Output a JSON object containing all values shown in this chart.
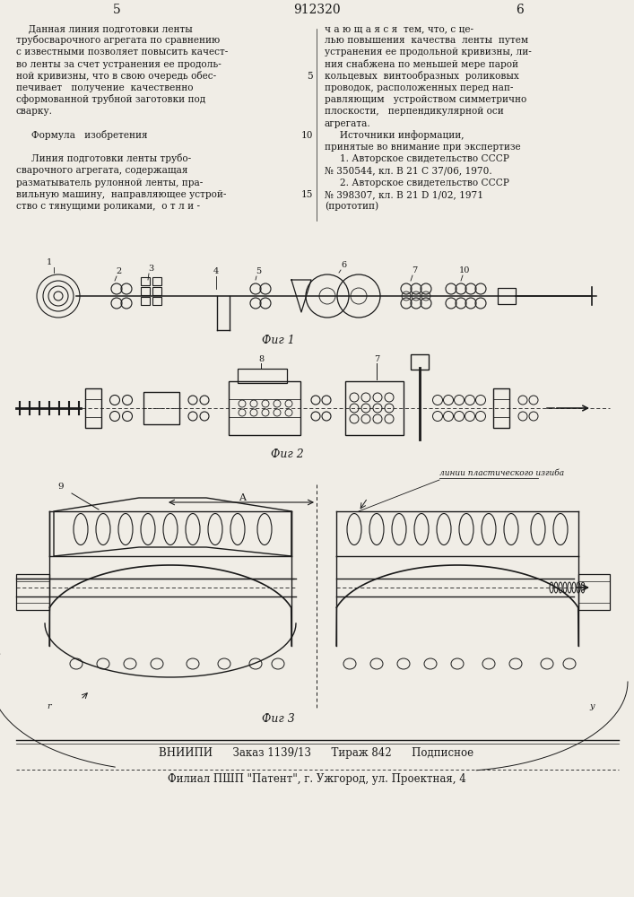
{
  "bg_color": "#f0ede6",
  "text_color": "#1a1a1a",
  "page_number_left": "5",
  "page_number_center": "912320",
  "page_number_right": "6",
  "col1_text": [
    "    Данная линия подготовки ленты",
    "трубосварочного агрегата по сравнению",
    "с известными позволяет повысить качест-",
    "во ленты за счет устранения ее продоль-",
    "ной кривизны, что в свою очередь обес-",
    "печивает   получение  качественно",
    "сформованной трубной заготовки под",
    "сварку.",
    "",
    "     Формула   изобретения",
    "",
    "     Линия подготовки ленты трубо-",
    "сварочного агрегата, содержащая",
    "разматыватель рулонной ленты, пра-",
    "вильную машину,  направляющее устрой-",
    "ство с тянущими роликами,  о т л и -"
  ],
  "col2_text": [
    "ч а ю щ а я с я  тем, что, с це-",
    "лью повышения  качества  ленты  путем",
    "устранения ее продольной кривизны, ли-",
    "ния снабжена по меньшей мере парой",
    "кольцевых  винтообразных  роликовых",
    "проводок, расположенных перед нап-",
    "равляющим   устройством симметрично",
    "плоскости,   перпендикулярной оси",
    "агрегата.",
    "     Источники информации,",
    "принятые во внимание при экспертизе",
    "     1. Авторское свидетельство СССР",
    "№ 350544, кл. В 21 С 37/06, 1970.",
    "     2. Авторское свидетельство СССР",
    "№ 398307, кл. В 21 D 1/02, 1971",
    "(прототип)"
  ],
  "fig1_caption": "Фиг 1",
  "fig2_caption": "Фиг 2",
  "fig3_caption": "Фиг 3",
  "bottom_line1": "ВНИИПИ      Заказ 1139/13      Тираж 842      Подписное",
  "bottom_line2": "Филиал ПШП \"Патент\", г. Ужгород, ул. Проектная, 4",
  "fig3_label": "линии пластического изгиба"
}
